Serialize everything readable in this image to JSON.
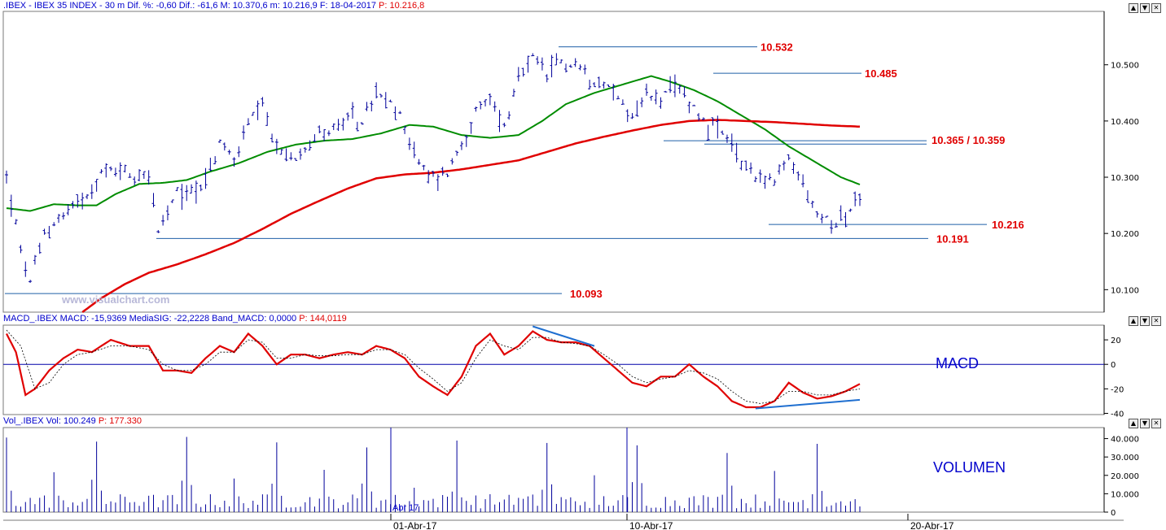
{
  "header": {
    "price_title": ".IBEX - IBEX 35 INDEX -  30 m  Dif. %: -0,60  Dif.: -61,6  M: 10.370,6  m: 10.216,9  F: 18-04-2017",
    "price_last": "P: 10.216,8",
    "macd_title": "MACD_.IBEX MACD: -15,9369  MediaSIG: -22,2228  Band_MACD: 0,0000",
    "macd_last": "P: 144,0119",
    "vol_title": "Vol_.IBEX Vol: 100.249",
    "vol_last": "P: 177.330"
  },
  "watermark": "www.visualchart.com",
  "panel_labels": {
    "macd": "MACD",
    "volume": "VOLUMEN"
  },
  "window_controls": {
    "up": "▲",
    "down": "▼",
    "close": "✕"
  },
  "colors": {
    "title_blue": "#0000cc",
    "level_red": "#e00000",
    "bars": "#00009a",
    "ma_green": "#008c00",
    "ma_red": "#e00000",
    "macd_red": "#e00000",
    "trend_blue": "#1f6fd0",
    "level_line": "#1f5fa8"
  },
  "chart_data": [
    {
      "type": "bar",
      "panel": "price",
      "subtype": "ohlc",
      "y_axis": {
        "range": [
          10060,
          10595
        ],
        "ticks": [
          "10.100",
          "10.200",
          "10.300",
          "10.400",
          "10.500"
        ],
        "tick_values": [
          10100,
          10200,
          10300,
          10400,
          10500
        ]
      },
      "x_axis": {
        "tick_labels": [
          "01-Abr-17",
          "10-Abr-17",
          "20-Abr-17"
        ],
        "annotation": "Abr 17"
      },
      "anchors": [
        [
          0,
          10300
        ],
        [
          3,
          10170
        ],
        [
          5,
          10110
        ],
        [
          8,
          10200
        ],
        [
          12,
          10235
        ],
        [
          16,
          10265
        ],
        [
          20,
          10305
        ],
        [
          24,
          10315
        ],
        [
          27,
          10300
        ],
        [
          30,
          10310
        ],
        [
          32,
          10200
        ],
        [
          36,
          10270
        ],
        [
          40,
          10280
        ],
        [
          43,
          10310
        ],
        [
          45,
          10360
        ],
        [
          48,
          10330
        ],
        [
          51,
          10395
        ],
        [
          54,
          10420
        ],
        [
          57,
          10350
        ],
        [
          60,
          10330
        ],
        [
          63,
          10360
        ],
        [
          66,
          10380
        ],
        [
          69,
          10385
        ],
        [
          72,
          10400
        ],
        [
          75,
          10400
        ],
        [
          78,
          10445
        ],
        [
          81,
          10430
        ],
        [
          84,
          10395
        ],
        [
          87,
          10320
        ],
        [
          90,
          10300
        ],
        [
          93,
          10310
        ],
        [
          96,
          10360
        ],
        [
          99,
          10410
        ],
        [
          102,
          10440
        ],
        [
          105,
          10390
        ],
        [
          108,
          10470
        ],
        [
          111,
          10510
        ],
        [
          114,
          10480
        ],
        [
          117,
          10505
        ],
        [
          120,
          10500
        ],
        [
          123,
          10480
        ],
        [
          126,
          10470
        ],
        [
          129,
          10440
        ],
        [
          132,
          10410
        ],
        [
          135,
          10445
        ],
        [
          138,
          10440
        ],
        [
          141,
          10455
        ],
        [
          144,
          10440
        ],
        [
          147,
          10400
        ],
        [
          150,
          10385
        ],
        [
          153,
          10350
        ],
        [
          156,
          10320
        ],
        [
          159,
          10300
        ],
        [
          162,
          10290
        ],
        [
          165,
          10330
        ],
        [
          168,
          10290
        ],
        [
          171,
          10230
        ],
        [
          174,
          10225
        ],
        [
          177,
          10230
        ],
        [
          180,
          10265
        ]
      ],
      "moving_averages": [
        {
          "color": "green",
          "points": [
            [
              0,
              10245
            ],
            [
              5,
              10240
            ],
            [
              10,
              10252
            ],
            [
              15,
              10250
            ],
            [
              19,
              10250
            ],
            [
              23,
              10270
            ],
            [
              28,
              10288
            ],
            [
              33,
              10290
            ],
            [
              38,
              10295
            ],
            [
              43,
              10310
            ],
            [
              49,
              10325
            ],
            [
              55,
              10345
            ],
            [
              61,
              10358
            ],
            [
              67,
              10365
            ],
            [
              73,
              10368
            ],
            [
              79,
              10378
            ],
            [
              85,
              10393
            ],
            [
              90,
              10390
            ],
            [
              96,
              10375
            ],
            [
              102,
              10370
            ],
            [
              108,
              10375
            ],
            [
              113,
              10400
            ],
            [
              118,
              10430
            ],
            [
              124,
              10450
            ],
            [
              130,
              10465
            ],
            [
              136,
              10480
            ],
            [
              140,
              10470
            ],
            [
              145,
              10455
            ],
            [
              150,
              10435
            ],
            [
              155,
              10410
            ],
            [
              160,
              10385
            ],
            [
              165,
              10355
            ],
            [
              170,
              10330
            ],
            [
              176,
              10300
            ],
            [
              180,
              10287
            ]
          ]
        },
        {
          "color": "red",
          "points": [
            [
              16,
              10060
            ],
            [
              20,
              10085
            ],
            [
              25,
              10110
            ],
            [
              30,
              10130
            ],
            [
              36,
              10145
            ],
            [
              42,
              10163
            ],
            [
              48,
              10183
            ],
            [
              54,
              10208
            ],
            [
              60,
              10235
            ],
            [
              66,
              10258
            ],
            [
              72,
              10280
            ],
            [
              78,
              10298
            ],
            [
              84,
              10305
            ],
            [
              90,
              10308
            ],
            [
              96,
              10314
            ],
            [
              102,
              10322
            ],
            [
              108,
              10330
            ],
            [
              114,
              10345
            ],
            [
              120,
              10360
            ],
            [
              126,
              10372
            ],
            [
              132,
              10383
            ],
            [
              138,
              10393
            ],
            [
              144,
              10400
            ],
            [
              150,
              10402
            ],
            [
              156,
              10400
            ],
            [
              162,
              10398
            ],
            [
              168,
              10395
            ],
            [
              174,
              10392
            ],
            [
              180,
              10390
            ]
          ]
        }
      ],
      "levels": [
        {
          "label": "10.532",
          "value": 10532
        },
        {
          "label": "10.485",
          "value": 10485
        },
        {
          "label": "10.365 / 10.359",
          "values": [
            10365,
            10359
          ]
        },
        {
          "label": "10.216",
          "value": 10216
        },
        {
          "label": "10.191",
          "value": 10191
        },
        {
          "label": "10.093",
          "value": 10093
        }
      ]
    },
    {
      "type": "line",
      "panel": "macd",
      "y_axis": {
        "range": [
          -41,
          32
        ],
        "ticks": [
          "20",
          "0",
          "-20",
          "-40"
        ],
        "tick_values": [
          20,
          0,
          -20,
          -40
        ]
      },
      "series": [
        {
          "values": [
            [
              0,
              25
            ],
            [
              2,
              10
            ],
            [
              4,
              -25
            ],
            [
              6,
              -20
            ],
            [
              9,
              -5
            ],
            [
              12,
              5
            ],
            [
              15,
              12
            ],
            [
              18,
              10
            ],
            [
              22,
              20
            ],
            [
              26,
              15
            ],
            [
              30,
              15
            ],
            [
              33,
              -5
            ],
            [
              36,
              -5
            ],
            [
              39,
              -7
            ],
            [
              42,
              5
            ],
            [
              45,
              15
            ],
            [
              48,
              10
            ],
            [
              51,
              25
            ],
            [
              54,
              15
            ],
            [
              57,
              0
            ],
            [
              60,
              8
            ],
            [
              63,
              8
            ],
            [
              66,
              5
            ],
            [
              69,
              8
            ],
            [
              72,
              10
            ],
            [
              75,
              8
            ],
            [
              78,
              15
            ],
            [
              81,
              12
            ],
            [
              84,
              5
            ],
            [
              87,
              -10
            ],
            [
              90,
              -18
            ],
            [
              93,
              -25
            ],
            [
              96,
              -10
            ],
            [
              99,
              15
            ],
            [
              102,
              25
            ],
            [
              105,
              8
            ],
            [
              108,
              15
            ],
            [
              111,
              27
            ],
            [
              114,
              20
            ],
            [
              117,
              18
            ],
            [
              120,
              18
            ],
            [
              123,
              15
            ],
            [
              126,
              5
            ],
            [
              129,
              -5
            ],
            [
              132,
              -15
            ],
            [
              135,
              -18
            ],
            [
              138,
              -10
            ],
            [
              141,
              -10
            ],
            [
              144,
              0
            ],
            [
              147,
              -10
            ],
            [
              150,
              -18
            ],
            [
              153,
              -30
            ],
            [
              156,
              -35
            ],
            [
              159,
              -35
            ],
            [
              162,
              -30
            ],
            [
              165,
              -15
            ],
            [
              168,
              -23
            ],
            [
              171,
              -28
            ],
            [
              174,
              -26
            ],
            [
              177,
              -22
            ],
            [
              180,
              -16
            ]
          ]
        },
        {
          "values": [
            [
              0,
              28
            ],
            [
              3,
              15
            ],
            [
              6,
              -20
            ],
            [
              9,
              -15
            ],
            [
              12,
              0
            ],
            [
              15,
              8
            ],
            [
              18,
              10
            ],
            [
              22,
              15
            ],
            [
              26,
              15
            ],
            [
              30,
              12
            ],
            [
              33,
              0
            ],
            [
              36,
              -5
            ],
            [
              39,
              -5
            ],
            [
              42,
              0
            ],
            [
              45,
              10
            ],
            [
              48,
              10
            ],
            [
              51,
              20
            ],
            [
              54,
              18
            ],
            [
              57,
              5
            ],
            [
              60,
              5
            ],
            [
              63,
              8
            ],
            [
              66,
              7
            ],
            [
              69,
              7
            ],
            [
              72,
              8
            ],
            [
              75,
              8
            ],
            [
              78,
              12
            ],
            [
              81,
              12
            ],
            [
              84,
              8
            ],
            [
              87,
              -3
            ],
            [
              90,
              -12
            ],
            [
              93,
              -22
            ],
            [
              96,
              -15
            ],
            [
              99,
              5
            ],
            [
              102,
              20
            ],
            [
              105,
              15
            ],
            [
              108,
              12
            ],
            [
              111,
              22
            ],
            [
              114,
              22
            ],
            [
              117,
              18
            ],
            [
              120,
              17
            ],
            [
              123,
              15
            ],
            [
              126,
              8
            ],
            [
              129,
              0
            ],
            [
              132,
              -10
            ],
            [
              135,
              -15
            ],
            [
              138,
              -12
            ],
            [
              141,
              -10
            ],
            [
              144,
              -5
            ],
            [
              147,
              -7
            ],
            [
              150,
              -12
            ],
            [
              153,
              -22
            ],
            [
              156,
              -30
            ],
            [
              159,
              -32
            ],
            [
              162,
              -30
            ],
            [
              165,
              -22
            ],
            [
              168,
              -22
            ],
            [
              171,
              -25
            ],
            [
              174,
              -25
            ],
            [
              177,
              -22
            ],
            [
              180,
              -20
            ]
          ]
        }
      ]
    },
    {
      "type": "bar",
      "panel": "volume",
      "y_axis": {
        "range": [
          0,
          46000
        ],
        "ticks": [
          "40.000",
          "30.000",
          "20.000",
          "10.000",
          "0"
        ],
        "tick_values": [
          40000,
          30000,
          20000,
          10000,
          0
        ]
      }
    }
  ]
}
